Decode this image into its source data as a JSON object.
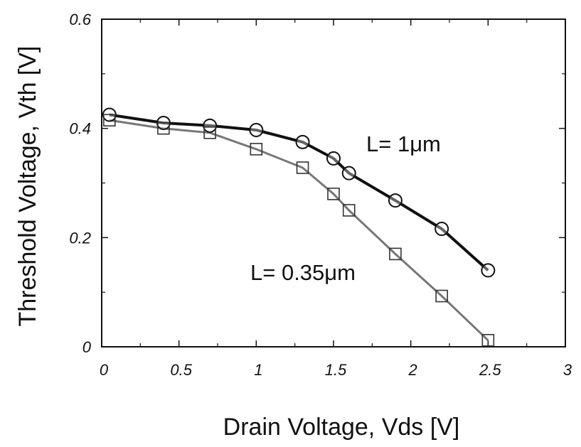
{
  "chart_data": {
    "type": "line",
    "xlabel": "Drain Voltage,  Vds [V]",
    "ylabel": "Threshold Voltage,  Vth [V]",
    "xlim": [
      0,
      3
    ],
    "ylim": [
      0,
      0.6
    ],
    "x_ticks": [
      "0",
      "0.5",
      "1",
      "1.5",
      "2",
      "2.5",
      "3"
    ],
    "y_ticks": [
      "0",
      "0.2",
      "0.4",
      "0.6"
    ],
    "grid": false,
    "legend": "none",
    "series": [
      {
        "name": "L= 1μm",
        "marker": "circle",
        "color": "#111111",
        "x": [
          0.05,
          0.4,
          0.7,
          1.0,
          1.3,
          1.5,
          1.6,
          1.9,
          2.2,
          2.5
        ],
        "y": [
          0.425,
          0.41,
          0.405,
          0.397,
          0.375,
          0.345,
          0.318,
          0.268,
          0.216,
          0.14
        ]
      },
      {
        "name": "L= 0.35μm",
        "marker": "square",
        "color": "#777777",
        "x": [
          0.05,
          0.4,
          0.7,
          1.0,
          1.3,
          1.5,
          1.6,
          1.9,
          2.2,
          2.5
        ],
        "y": [
          0.415,
          0.4,
          0.392,
          0.362,
          0.328,
          0.28,
          0.25,
          0.17,
          0.093,
          0.012
        ]
      }
    ]
  }
}
